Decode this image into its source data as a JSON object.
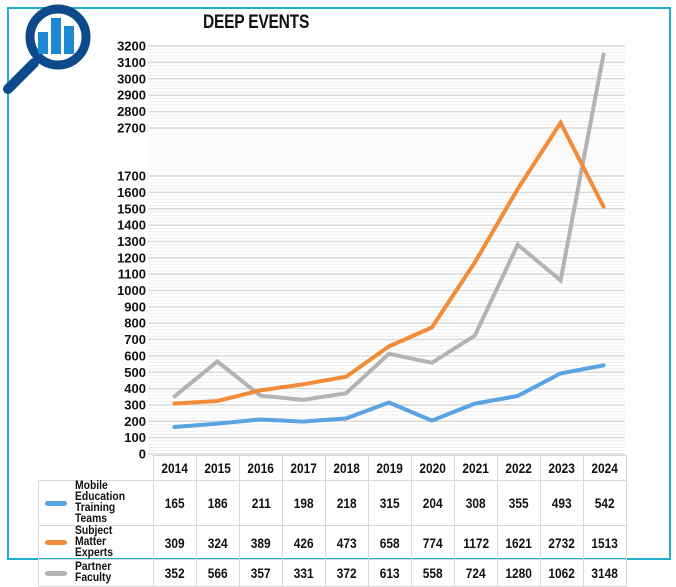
{
  "title": "DEEP EVENTS",
  "icon": "magnifier-bar-chart-icon",
  "colors": {
    "frame": "#1FB0D0",
    "icon_ring": "#0D4A8C",
    "icon_bars": "#1E88D0",
    "grid_major": "#d9d9d9",
    "grid_minor": "#efefef"
  },
  "chart_data": {
    "type": "line",
    "title": "DEEP EVENTS",
    "xlabel": "",
    "ylabel": "",
    "x": [
      "2014",
      "2015",
      "2016",
      "2017",
      "2018",
      "2019",
      "2020",
      "2021",
      "2022",
      "2023",
      "2024"
    ],
    "y_axis": {
      "broken": true,
      "lower_range": [
        0,
        1700
      ],
      "upper_range": [
        2700,
        3200
      ],
      "lower_ticks": [
        "0",
        "100",
        "200",
        "300",
        "400",
        "500",
        "600",
        "700",
        "800",
        "900",
        "1000",
        "1100",
        "1200",
        "1300",
        "1400",
        "1500",
        "1600",
        "1700"
      ],
      "upper_ticks": [
        "2700",
        "2800",
        "2900",
        "3000",
        "3100",
        "3200"
      ]
    },
    "grid": true,
    "legend": "bottom-left (data table)",
    "series": [
      {
        "name": "Mobile Education Training Teams",
        "color": "#5BA3E0",
        "values": [
          165,
          186,
          211,
          198,
          218,
          315,
          204,
          308,
          355,
          493,
          542
        ]
      },
      {
        "name": "Subject Matter Experts",
        "color": "#F28C38",
        "values": [
          309,
          324,
          389,
          426,
          473,
          658,
          774,
          1172,
          1621,
          2732,
          1513
        ]
      },
      {
        "name": "Partner Faculty",
        "color": "#B3B3B3",
        "values": [
          352,
          566,
          357,
          331,
          372,
          613,
          558,
          724,
          1280,
          1062,
          3148
        ]
      }
    ]
  },
  "table": {
    "series_labels": [
      "Mobile Education Training Teams",
      "Subject Matter Experts",
      "Partner Faculty"
    ]
  }
}
